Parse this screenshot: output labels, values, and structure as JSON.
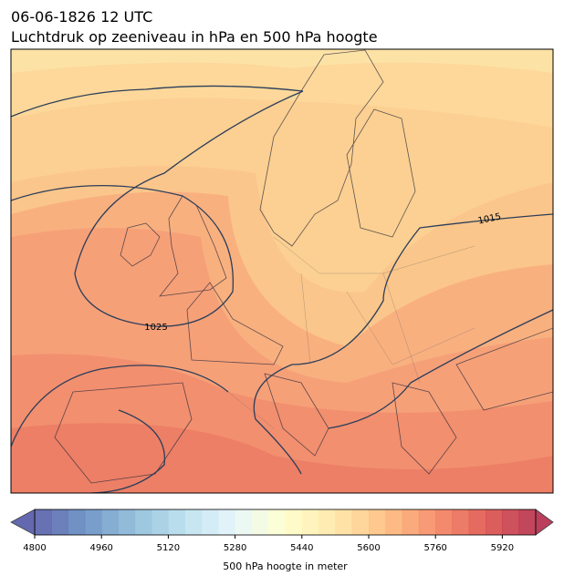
{
  "header": {
    "title": "06-06-1826 12 UTC",
    "subtitle": "Luchtdruk op zeeniveau in hPa en 500 hPa hoogte"
  },
  "map": {
    "contour_labels": [
      "1015",
      "1025"
    ]
  },
  "colorbar": {
    "range": [
      4800,
      6000
    ],
    "step": 40,
    "ticks": [
      4800,
      4960,
      5120,
      5280,
      5440,
      5600,
      5760,
      5920
    ],
    "label": "500 hPa hoogte in meter",
    "cmap": [
      "#313695",
      "#4575b4",
      "#74add1",
      "#abd9e9",
      "#e0f3f8",
      "#ffffbf",
      "#fee090",
      "#fdae61",
      "#f46d43",
      "#d73027",
      "#a50026"
    ]
  }
}
